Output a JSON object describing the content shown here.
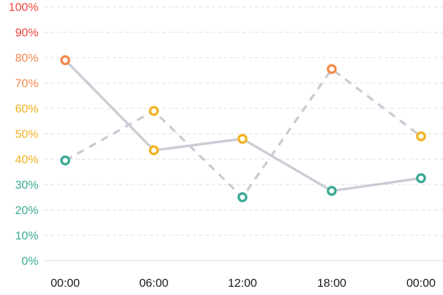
{
  "chart_data": {
    "type": "line",
    "categories": [
      "00:00",
      "06:00",
      "12:00",
      "18:00",
      "00:00"
    ],
    "y_ticks": [
      "0%",
      "10%",
      "20%",
      "30%",
      "40%",
      "50%",
      "60%",
      "70%",
      "80%",
      "90%",
      "100%"
    ],
    "ylim": [
      0,
      100
    ],
    "unit": "%",
    "grid": true,
    "series": [
      {
        "style": "solid",
        "values": [
          79,
          43.5,
          48,
          27.5,
          32.5
        ]
      },
      {
        "style": "dashed",
        "values": [
          39.5,
          59,
          25,
          75.5,
          49
        ]
      }
    ],
    "line_color": "#c8ccd4",
    "color_bands": [
      {
        "from": 0,
        "to": 40,
        "color": "#3aaa94"
      },
      {
        "from": 40,
        "to": 70,
        "color": "#f3b21f"
      },
      {
        "from": 70,
        "to": 90,
        "color": "#f5894b"
      },
      {
        "from": 90,
        "to": 100,
        "color": "#f0453a"
      }
    ]
  }
}
